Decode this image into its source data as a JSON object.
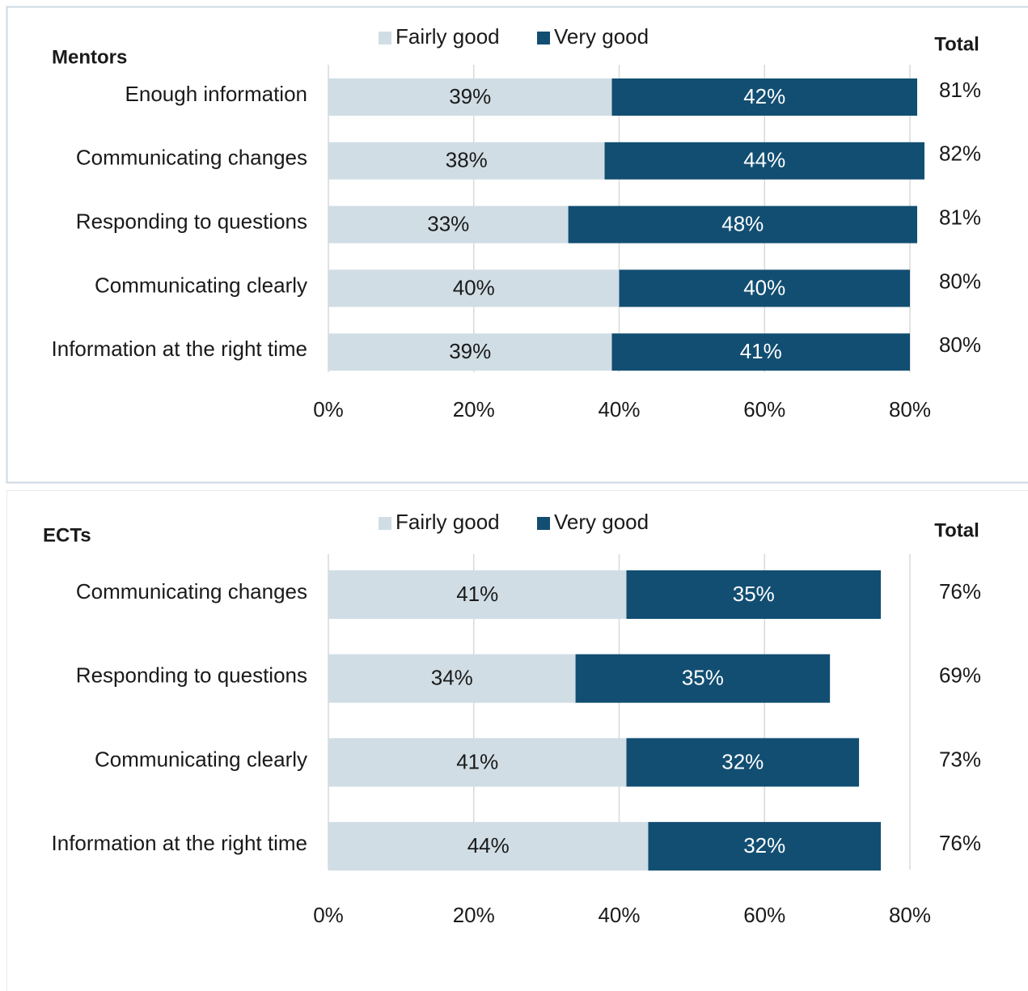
{
  "chart_data": [
    {
      "type": "stacked_barh",
      "title": "Mentors",
      "totals_title": "Total",
      "categories": [
        "Enough information",
        "Communicating changes",
        "Responding to questions",
        "Communicating clearly",
        "Information at the right time"
      ],
      "series": [
        {
          "name": "Fairly good",
          "color": "#d0dde5",
          "values": [
            39,
            38,
            33,
            40,
            39
          ],
          "value_labels": [
            "39%",
            "38%",
            "33%",
            "40%",
            "39%"
          ]
        },
        {
          "name": "Very good",
          "color": "#124e72",
          "values": [
            42,
            44,
            48,
            40,
            41
          ],
          "value_labels": [
            "42%",
            "44%",
            "48%",
            "40%",
            "41%"
          ]
        }
      ],
      "totals": [
        81,
        82,
        81,
        80,
        80
      ],
      "total_labels": [
        "81%",
        "82%",
        "81%",
        "80%",
        "80%"
      ],
      "xlim": [
        0,
        80
      ],
      "xticks": [
        {
          "value": 0,
          "label": "0%"
        },
        {
          "value": 20,
          "label": "20%"
        },
        {
          "value": 40,
          "label": "40%"
        },
        {
          "value": 60,
          "label": "60%"
        },
        {
          "value": 80,
          "label": "80%"
        }
      ],
      "grid": true
    },
    {
      "type": "stacked_barh",
      "title": "ECTs",
      "totals_title": "Total",
      "categories": [
        "Communicating changes",
        "Responding to questions",
        "Communicating clearly",
        "Information at the right time"
      ],
      "series": [
        {
          "name": "Fairly good",
          "color": "#d0dde5",
          "values": [
            41,
            34,
            41,
            44
          ],
          "value_labels": [
            "41%",
            "34%",
            "41%",
            "44%"
          ]
        },
        {
          "name": "Very good",
          "color": "#124e72",
          "values": [
            35,
            35,
            32,
            32
          ],
          "value_labels": [
            "35%",
            "35%",
            "32%",
            "32%"
          ]
        }
      ],
      "totals": [
        76,
        69,
        73,
        76
      ],
      "total_labels": [
        "76%",
        "69%",
        "73%",
        "76%"
      ],
      "xlim": [
        0,
        80
      ],
      "xticks": [
        {
          "value": 0,
          "label": "0%"
        },
        {
          "value": 20,
          "label": "20%"
        },
        {
          "value": 40,
          "label": "40%"
        },
        {
          "value": 60,
          "label": "60%"
        },
        {
          "value": 80,
          "label": "80%"
        }
      ],
      "grid": true
    }
  ]
}
